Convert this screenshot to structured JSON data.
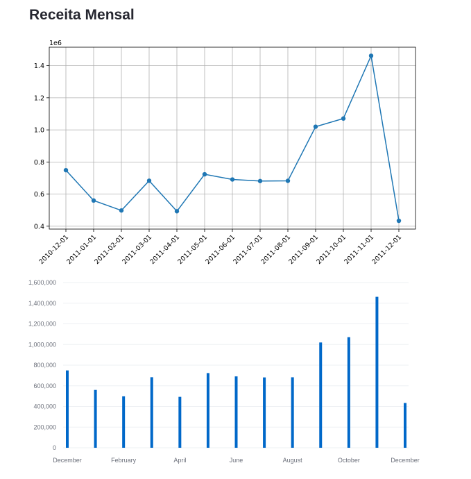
{
  "page": {
    "title": "Receita Mensal"
  },
  "chart_data": [
    {
      "type": "line",
      "y_offset_label": "1e6",
      "x": [
        "2010-12-01",
        "2011-01-01",
        "2011-02-01",
        "2011-03-01",
        "2011-04-01",
        "2011-05-01",
        "2011-06-01",
        "2011-07-01",
        "2011-08-01",
        "2011-09-01",
        "2011-10-01",
        "2011-11-01",
        "2011-12-01"
      ],
      "values": [
        748957,
        560000,
        498063,
        683267,
        493207,
        723334,
        691123,
        681300,
        682681,
        1019688,
        1070705,
        1461756,
        433668
      ],
      "y_ticks": [
        0.4,
        0.6,
        0.8,
        1.0,
        1.2,
        1.4
      ],
      "y_tick_labels": [
        "0.4",
        "0.6",
        "0.8",
        "1.0",
        "1.2",
        "1.4"
      ],
      "ylim": [
        382000,
        1515000
      ],
      "grid": true,
      "color": "#1f77b4"
    },
    {
      "type": "bar",
      "x": [
        "2010-12-01",
        "2011-01-01",
        "2011-02-01",
        "2011-03-01",
        "2011-04-01",
        "2011-05-01",
        "2011-06-01",
        "2011-07-01",
        "2011-08-01",
        "2011-09-01",
        "2011-10-01",
        "2011-11-01",
        "2011-12-01"
      ],
      "values": [
        748957,
        560000,
        498063,
        683267,
        493207,
        723334,
        691123,
        681300,
        682681,
        1019688,
        1070705,
        1461756,
        433668
      ],
      "x_tick_labels": [
        "December",
        "February",
        "April",
        "June",
        "August",
        "October",
        "December"
      ],
      "x_tick_positions": [
        0,
        2,
        4,
        6,
        8,
        10,
        12
      ],
      "y_ticks": [
        0,
        200000,
        400000,
        600000,
        800000,
        1000000,
        1200000,
        1400000,
        1600000
      ],
      "y_tick_labels": [
        "0",
        "200,000",
        "400,000",
        "600,000",
        "800,000",
        "1,000,000",
        "1,200,000",
        "1,400,000",
        "1,600,000"
      ],
      "ylim": [
        0,
        1600000
      ],
      "grid": true,
      "color": "#0068c9"
    }
  ]
}
